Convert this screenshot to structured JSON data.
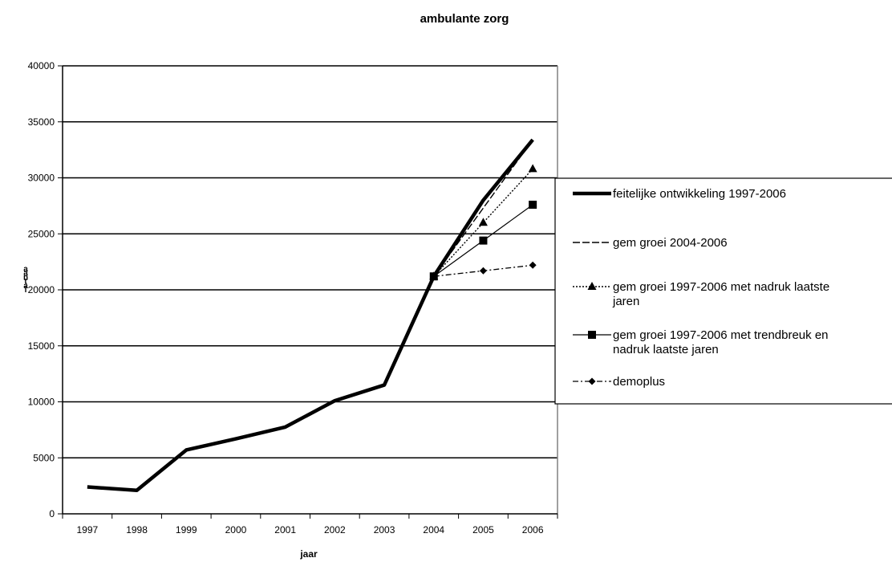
{
  "chart_data": {
    "type": "line",
    "title": "ambulante zorg",
    "xlabel": "jaar",
    "ylabel": "aantal",
    "categories": [
      "1997",
      "1998",
      "1999",
      "2000",
      "2001",
      "2002",
      "2003",
      "2004",
      "2005",
      "2006"
    ],
    "ylim": [
      0,
      40000
    ],
    "yticks": [
      0,
      5000,
      10000,
      15000,
      20000,
      25000,
      30000,
      35000,
      40000
    ],
    "grid": "horizontal",
    "legend_position": "right",
    "series": [
      {
        "name": "feitelijke ontwikkeling 1997-2006",
        "style": "thick-solid",
        "x": [
          "1997",
          "1998",
          "1999",
          "2000",
          "2001",
          "2002",
          "2003",
          "2004",
          "2005",
          "2006"
        ],
        "values": [
          2400,
          2100,
          5700,
          6700,
          7750,
          10100,
          11500,
          21200,
          28000,
          33400
        ]
      },
      {
        "name": "gem groei 2004-2006",
        "style": "dashed",
        "x": [
          "2004",
          "2005",
          "2006"
        ],
        "values": [
          21200,
          27300,
          33400
        ]
      },
      {
        "name": "gem groei 1997-2006  met nadruk laatste jaren",
        "style": "dotted-triangle",
        "x": [
          "2004",
          "2005",
          "2006"
        ],
        "values": [
          21200,
          26000,
          30800
        ]
      },
      {
        "name": "gem groei 1997-2006  met trendbreuk en nadruk laatste jaren",
        "style": "solid-square",
        "x": [
          "2004",
          "2005",
          "2006"
        ],
        "values": [
          21200,
          24400,
          27600
        ]
      },
      {
        "name": "demoplus",
        "style": "dashdot-diamond",
        "x": [
          "2004",
          "2005",
          "2006"
        ],
        "values": [
          21200,
          21700,
          22200
        ]
      }
    ],
    "legend_lines": [
      [
        "feitelijke ontwikkeling 1997-2006"
      ],
      [
        "gem groei 2004-2006"
      ],
      [
        "gem groei 1997-2006  met nadruk laatste",
        "jaren"
      ],
      [
        "gem groei 1997-2006  met trendbreuk en",
        "nadruk laatste jaren"
      ],
      [
        "demoplus"
      ]
    ]
  }
}
